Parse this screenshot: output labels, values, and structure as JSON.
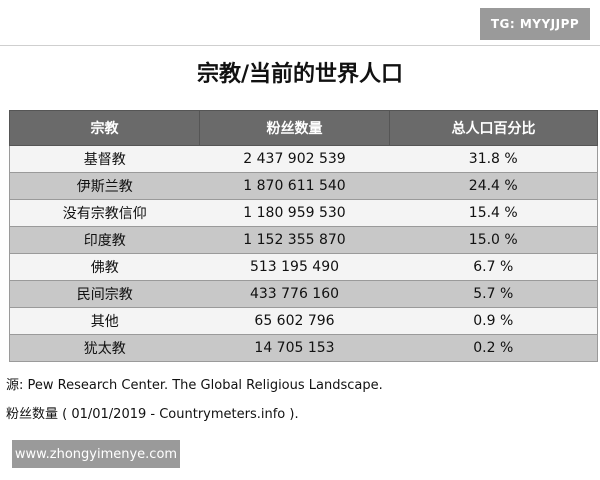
{
  "watermark_top": "TG: MYYJJPP",
  "title": "宗教/当前的世界人口",
  "table": {
    "headers": [
      "宗教",
      "粉丝数量",
      "总人口百分比"
    ],
    "rows": [
      [
        "基督教",
        "2 437 902 539",
        "31.8 %"
      ],
      [
        "伊斯兰教",
        "1 870 611 540",
        "24.4 %"
      ],
      [
        "没有宗教信仰",
        "1 180 959 530",
        "15.4 %"
      ],
      [
        "印度教",
        "1 152 355 870",
        "15.0 %"
      ],
      [
        "佛教",
        "513 195 490",
        "6.7 %"
      ],
      [
        "民间宗教",
        "433 776 160",
        "5.7 %"
      ],
      [
        "其他",
        "65 602 796",
        "0.9 %"
      ],
      [
        "犹太教",
        "14 705 153",
        "0.2 %"
      ]
    ]
  },
  "source_line1": "源: Pew Research Center. The Global Religious Landscape.",
  "source_line2": "粉丝数量 ( 01/01/2019 - Countrymeters.info ).",
  "watermark_bottom": "www.zhongyimenye.com"
}
